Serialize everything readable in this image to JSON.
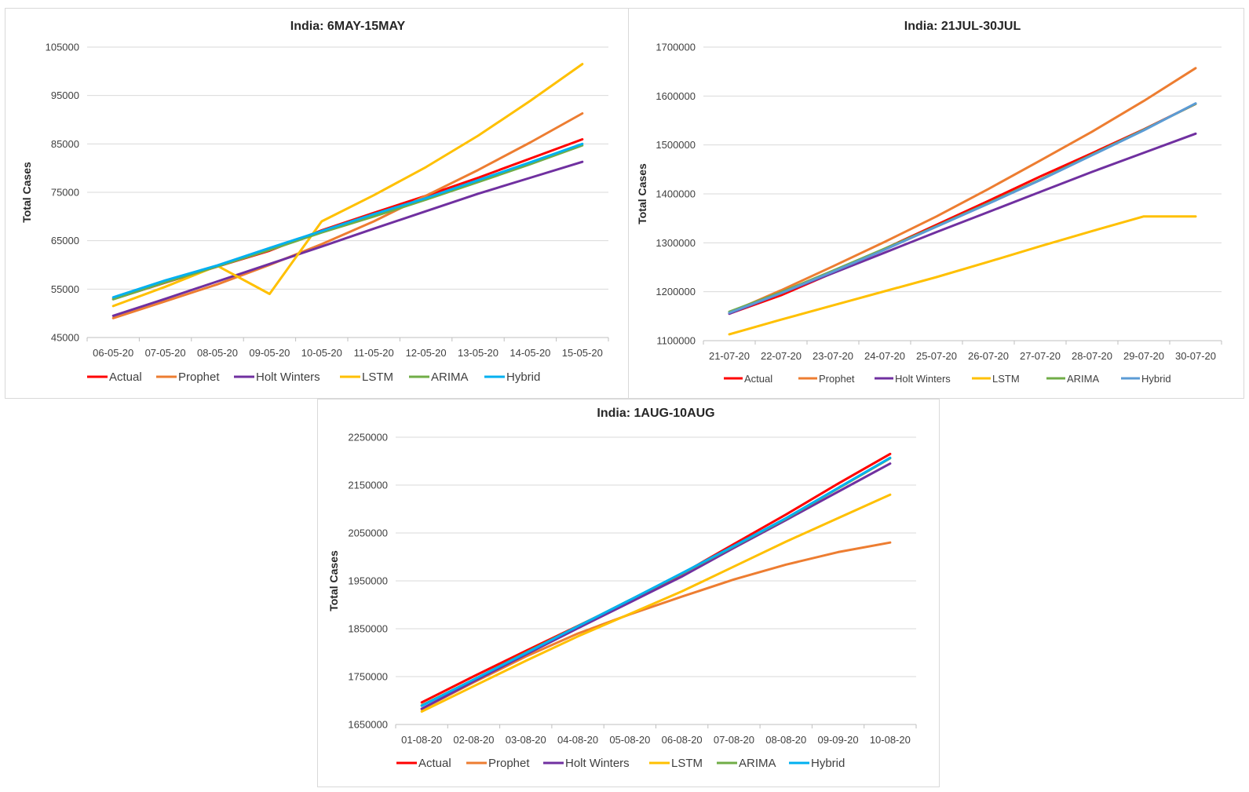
{
  "chart_data": [
    {
      "type": "line",
      "title": "India: 6MAY-15MAY",
      "ylabel": "Total Cases",
      "xlabel": "",
      "ylim": [
        45000,
        105000
      ],
      "yticks": [
        "45000",
        "55000",
        "65000",
        "75000",
        "85000",
        "95000",
        "105000"
      ],
      "categories": [
        "06-05-20",
        "07-05-20",
        "08-05-20",
        "09-05-20",
        "10-05-20",
        "11-05-20",
        "12-05-20",
        "13-05-20",
        "14-05-20",
        "15-05-20"
      ],
      "legend_position": "bottom",
      "grid": true,
      "series": [
        {
          "name": "Actual",
          "color": "#ff0000",
          "values": [
            52952,
            56342,
            59662,
            62939,
            67152,
            70756,
            74281,
            78003,
            81970,
            85940
          ]
        },
        {
          "name": "Prophet",
          "color": "#ed7d31",
          "values": [
            49000,
            52500,
            56000,
            60000,
            64300,
            69000,
            74300,
            79600,
            85300,
            91300
          ]
        },
        {
          "name": "Holt Winters",
          "color": "#7030a0",
          "values": [
            49500,
            53000,
            56600,
            60200,
            63800,
            67500,
            71100,
            74700,
            78000,
            81300
          ]
        },
        {
          "name": "LSTM",
          "color": "#ffc000",
          "values": [
            51500,
            55500,
            59800,
            54000,
            69000,
            74400,
            80200,
            86700,
            93900,
            101500
          ]
        },
        {
          "name": "ARIMA",
          "color": "#70ad47",
          "values": [
            52900,
            56400,
            59700,
            63100,
            66700,
            70000,
            73500,
            77100,
            80800,
            84700
          ]
        },
        {
          "name": "Hybrid",
          "color": "#00b0f0",
          "values": [
            53300,
            56800,
            59900,
            63500,
            67000,
            70500,
            73800,
            77500,
            81200,
            85000
          ]
        }
      ]
    },
    {
      "type": "line",
      "title": "India: 21JUL-30JUL",
      "ylabel": "Total Cases",
      "xlabel": "",
      "ylim": [
        1100000,
        1700000
      ],
      "yticks": [
        "1100000",
        "1200000",
        "1300000",
        "1400000",
        "1500000",
        "1600000",
        "1700000"
      ],
      "categories": [
        "21-07-20",
        "22-07-20",
        "23-07-20",
        "24-07-20",
        "25-07-20",
        "26-07-20",
        "27-07-20",
        "28-07-20",
        "29-07-20",
        "30-07-20"
      ],
      "legend_position": "bottom",
      "grid": true,
      "series": [
        {
          "name": "Actual",
          "color": "#ff0000",
          "values": [
            1155191,
            1192915,
            1238635,
            1287945,
            1336861,
            1385522,
            1435453,
            1483156,
            1531669,
            1583792
          ]
        },
        {
          "name": "Prophet",
          "color": "#ed7d31",
          "values": [
            1157000,
            1203000,
            1252000,
            1302000,
            1354000,
            1410000,
            1468000,
            1527000,
            1590000,
            1657000
          ]
        },
        {
          "name": "Holt Winters",
          "color": "#7030a0",
          "values": [
            1155000,
            1197000,
            1238000,
            1280000,
            1322000,
            1363000,
            1404000,
            1445000,
            1484000,
            1523000
          ]
        },
        {
          "name": "LSTM",
          "color": "#ffc000",
          "values": [
            1113000,
            1143000,
            1172000,
            1201000,
            1230000,
            1261000,
            1293000,
            1324000,
            1354000,
            1354000
          ]
        },
        {
          "name": "ARIMA",
          "color": "#70ad47",
          "values": [
            1159000,
            1199000,
            1243000,
            1288000,
            1334000,
            1381000,
            1429000,
            1480000,
            1531000,
            1584000
          ]
        },
        {
          "name": "Hybrid",
          "color": "#5b9bd5",
          "values": [
            1157000,
            1197000,
            1241000,
            1286000,
            1333000,
            1380000,
            1428000,
            1479000,
            1530000,
            1585000
          ]
        }
      ]
    },
    {
      "type": "line",
      "title": "India: 1AUG-10AUG",
      "ylabel": "Total Cases",
      "xlabel": "",
      "ylim": [
        1650000,
        2250000
      ],
      "yticks": [
        "1650000",
        "1750000",
        "1850000",
        "1950000",
        "2050000",
        "2150000",
        "2250000"
      ],
      "categories": [
        "01-08-20",
        "02-08-20",
        "03-08-20",
        "04-08-20",
        "05-08-20",
        "06-08-20",
        "07-08-20",
        "08-08-20",
        "09-09-20",
        "10-08-20"
      ],
      "legend_position": "bottom",
      "grid": true,
      "series": [
        {
          "name": "Actual",
          "color": "#ff0000",
          "values": [
            1695988,
            1750723,
            1803695,
            1855745,
            1908254,
            1964536,
            2027074,
            2088611,
            2153010,
            2215074
          ]
        },
        {
          "name": "Prophet",
          "color": "#ed7d31",
          "values": [
            1682000,
            1738000,
            1792000,
            1840000,
            1880000,
            1917000,
            1953000,
            1984000,
            2010000,
            2030000
          ]
        },
        {
          "name": "Holt Winters",
          "color": "#7030a0",
          "values": [
            1683000,
            1740000,
            1796000,
            1851000,
            1905000,
            1959000,
            2019000,
            2077000,
            2136000,
            2195000
          ]
        },
        {
          "name": "LSTM",
          "color": "#ffc000",
          "values": [
            1677000,
            1730000,
            1783000,
            1834000,
            1881000,
            1928000,
            1980000,
            2032000,
            2081000,
            2130000
          ]
        },
        {
          "name": "ARIMA",
          "color": "#70ad47",
          "values": [
            1690000,
            1744000,
            1800000,
            1855000,
            1910000,
            1965000,
            2022000,
            2080000,
            2143000,
            2206000
          ]
        },
        {
          "name": "Hybrid",
          "color": "#00b0f0",
          "values": [
            1689000,
            1744000,
            1799000,
            1855000,
            1910000,
            1966000,
            2023000,
            2081000,
            2144000,
            2207000
          ]
        }
      ]
    }
  ]
}
